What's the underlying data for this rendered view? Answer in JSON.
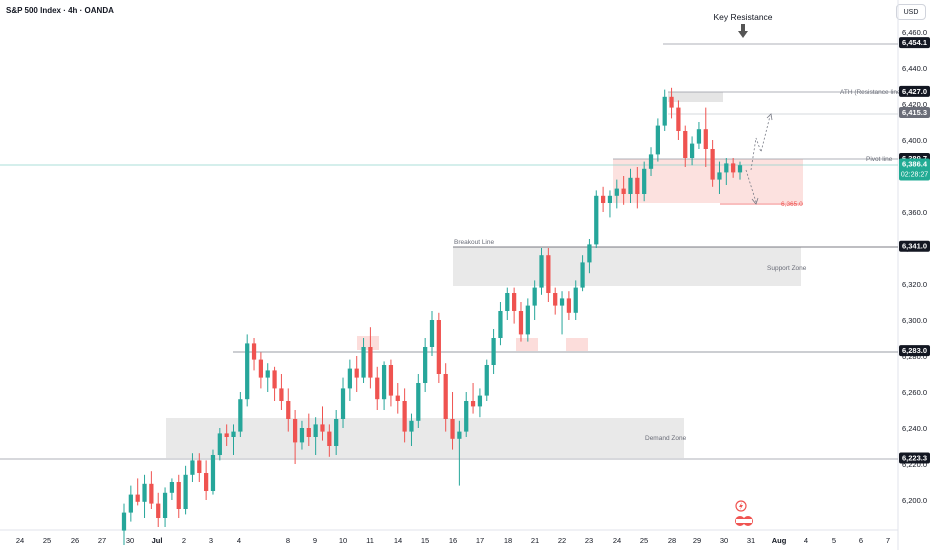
{
  "header": {
    "title": "S&P 500 Index · 4h · OANDA",
    "currency": "USD"
  },
  "colors": {
    "up": "#26a69a",
    "down": "#ef5350",
    "zone_gray": "#e0e0e0",
    "zone_red": "#fbd4d2",
    "level_line": "#787b86",
    "current_price_line": "#8fd4cc"
  },
  "chart_data": {
    "type": "candlestick",
    "title": "S&P 500 Index · 4h · OANDA",
    "ylim": [
      6190,
      6475
    ],
    "y_ticks": [
      "6,200.0",
      "6,220.0",
      "6,240.0",
      "6,260.0",
      "6,280.0",
      "6,300.0",
      "6,320.0",
      "6,340.0",
      "6,360.0",
      "6,380.0",
      "6,400.0",
      "6,420.0",
      "6,440.0",
      "6,460.0"
    ],
    "x_ticks": [
      "24",
      "25",
      "26",
      "27",
      "30",
      "Jul",
      "2",
      "3",
      "4",
      "8",
      "9",
      "10",
      "11",
      "14",
      "15",
      "16",
      "17",
      "18",
      "21",
      "22",
      "23",
      "24",
      "25",
      "28",
      "29",
      "30",
      "31",
      "Aug",
      "4",
      "5",
      "6",
      "7"
    ],
    "price_labels": [
      {
        "text": "6,454.1",
        "value": 6454.1,
        "style": "dark"
      },
      {
        "text": "6,427.0",
        "value": 6427.0,
        "style": "dark"
      },
      {
        "text": "6,415.3",
        "value": 6415.3,
        "style": "gray"
      },
      {
        "text": "6,389.7",
        "value": 6389.7,
        "style": "dark"
      },
      {
        "text": "6,386.4",
        "value": 6386.4,
        "style": "current",
        "sub": "02:28:27"
      },
      {
        "text": "6,341.0",
        "value": 6341.0,
        "style": "dark"
      },
      {
        "text": "6,283.0",
        "value": 6283.0,
        "style": "dark"
      },
      {
        "text": "6,223.3",
        "value": 6223.3,
        "style": "dark"
      }
    ],
    "annotations": {
      "key_resistance": "Key Resistance",
      "ath_line": "ATH (Resistance line)",
      "pivot_line": "Pivot line",
      "target": "6,365.0",
      "breakout_line": "Breakout Line",
      "support_zone": "Support Zone",
      "demand_zone": "Demand Zone"
    },
    "candles": [
      [
        6183,
        6198,
        6175,
        6193
      ],
      [
        6193,
        6208,
        6188,
        6203
      ],
      [
        6203,
        6212,
        6197,
        6199
      ],
      [
        6199,
        6214,
        6190,
        6209
      ],
      [
        6209,
        6216,
        6195,
        6198
      ],
      [
        6198,
        6204,
        6185,
        6190
      ],
      [
        6190,
        6207,
        6185,
        6204
      ],
      [
        6204,
        6212,
        6200,
        6210
      ],
      [
        6210,
        6214,
        6190,
        6195
      ],
      [
        6195,
        6219,
        6192,
        6214
      ],
      [
        6214,
        6226,
        6210,
        6222
      ],
      [
        6222,
        6226,
        6210,
        6215
      ],
      [
        6215,
        6222,
        6200,
        6205
      ],
      [
        6205,
        6228,
        6203,
        6225
      ],
      [
        6225,
        6240,
        6222,
        6237
      ],
      [
        6237,
        6242,
        6230,
        6235
      ],
      [
        6235,
        6242,
        6225,
        6238
      ],
      [
        6238,
        6260,
        6235,
        6256
      ],
      [
        6256,
        6292,
        6252,
        6287
      ],
      [
        6287,
        6290,
        6272,
        6278
      ],
      [
        6278,
        6282,
        6262,
        6268
      ],
      [
        6268,
        6276,
        6260,
        6272
      ],
      [
        6272,
        6274,
        6255,
        6262
      ],
      [
        6262,
        6270,
        6250,
        6255
      ],
      [
        6255,
        6262,
        6238,
        6245
      ],
      [
        6245,
        6250,
        6220,
        6232
      ],
      [
        6232,
        6244,
        6228,
        6240
      ],
      [
        6240,
        6248,
        6230,
        6235
      ],
      [
        6235,
        6246,
        6225,
        6242
      ],
      [
        6242,
        6252,
        6233,
        6238
      ],
      [
        6238,
        6242,
        6224,
        6230
      ],
      [
        6230,
        6250,
        6225,
        6245
      ],
      [
        6245,
        6268,
        6240,
        6262
      ],
      [
        6262,
        6278,
        6255,
        6273
      ],
      [
        6273,
        6280,
        6260,
        6268
      ],
      [
        6268,
        6290,
        6265,
        6285
      ],
      [
        6285,
        6296,
        6262,
        6268
      ],
      [
        6268,
        6274,
        6250,
        6256
      ],
      [
        6256,
        6277,
        6250,
        6275
      ],
      [
        6275,
        6278,
        6252,
        6258
      ],
      [
        6258,
        6265,
        6248,
        6255
      ],
      [
        6255,
        6262,
        6232,
        6238
      ],
      [
        6238,
        6248,
        6230,
        6244
      ],
      [
        6244,
        6270,
        6240,
        6265
      ],
      [
        6265,
        6290,
        6260,
        6285
      ],
      [
        6285,
        6305,
        6280,
        6300
      ],
      [
        6300,
        6304,
        6265,
        6270
      ],
      [
        6270,
        6276,
        6238,
        6245
      ],
      [
        6245,
        6260,
        6228,
        6234
      ],
      [
        6234,
        6244,
        6208,
        6238
      ],
      [
        6238,
        6260,
        6235,
        6255
      ],
      [
        6255,
        6265,
        6248,
        6252
      ],
      [
        6252,
        6262,
        6246,
        6258
      ],
      [
        6258,
        6278,
        6255,
        6275
      ],
      [
        6275,
        6295,
        6270,
        6290
      ],
      [
        6290,
        6310,
        6286,
        6305
      ],
      [
        6305,
        6318,
        6300,
        6315
      ],
      [
        6315,
        6318,
        6298,
        6305
      ],
      [
        6305,
        6310,
        6288,
        6292
      ],
      [
        6292,
        6312,
        6288,
        6308
      ],
      [
        6308,
        6322,
        6300,
        6318
      ],
      [
        6318,
        6340,
        6314,
        6336
      ],
      [
        6336,
        6340,
        6310,
        6315
      ],
      [
        6315,
        6318,
        6303,
        6308
      ],
      [
        6308,
        6316,
        6292,
        6312
      ],
      [
        6312,
        6316,
        6300,
        6304
      ],
      [
        6304,
        6322,
        6300,
        6318
      ],
      [
        6318,
        6336,
        6316,
        6332
      ],
      [
        6332,
        6345,
        6326,
        6342
      ],
      [
        6342,
        6372,
        6340,
        6369
      ],
      [
        6369,
        6374,
        6360,
        6365
      ],
      [
        6365,
        6372,
        6357,
        6369
      ],
      [
        6369,
        6378,
        6362,
        6373
      ],
      [
        6373,
        6380,
        6364,
        6370
      ],
      [
        6370,
        6384,
        6365,
        6379
      ],
      [
        6379,
        6385,
        6362,
        6370
      ],
      [
        6370,
        6388,
        6366,
        6384
      ],
      [
        6384,
        6396,
        6380,
        6392
      ],
      [
        6392,
        6412,
        6388,
        6408
      ],
      [
        6408,
        6428,
        6405,
        6424
      ],
      [
        6424,
        6429,
        6412,
        6418
      ],
      [
        6418,
        6422,
        6400,
        6405
      ],
      [
        6405,
        6408,
        6385,
        6390
      ],
      [
        6390,
        6402,
        6386,
        6398
      ],
      [
        6398,
        6410,
        6395,
        6406
      ],
      [
        6406,
        6418,
        6385,
        6395
      ],
      [
        6395,
        6400,
        6374,
        6378
      ],
      [
        6378,
        6388,
        6370,
        6382
      ],
      [
        6382,
        6390,
        6375,
        6387
      ],
      [
        6387,
        6390,
        6379,
        6382
      ],
      [
        6382,
        6388,
        6378,
        6386
      ]
    ]
  }
}
